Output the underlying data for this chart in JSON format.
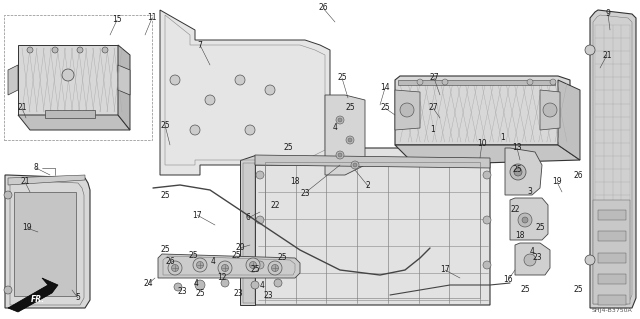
{
  "background_color": "#ffffff",
  "diagram_code": "SHJ4-B3750A",
  "fg": "#1a1a1a",
  "gray1": "#c8c8c8",
  "gray2": "#e0e0e0",
  "gray3": "#b0b0b0",
  "hatch_color": "#999999"
}
